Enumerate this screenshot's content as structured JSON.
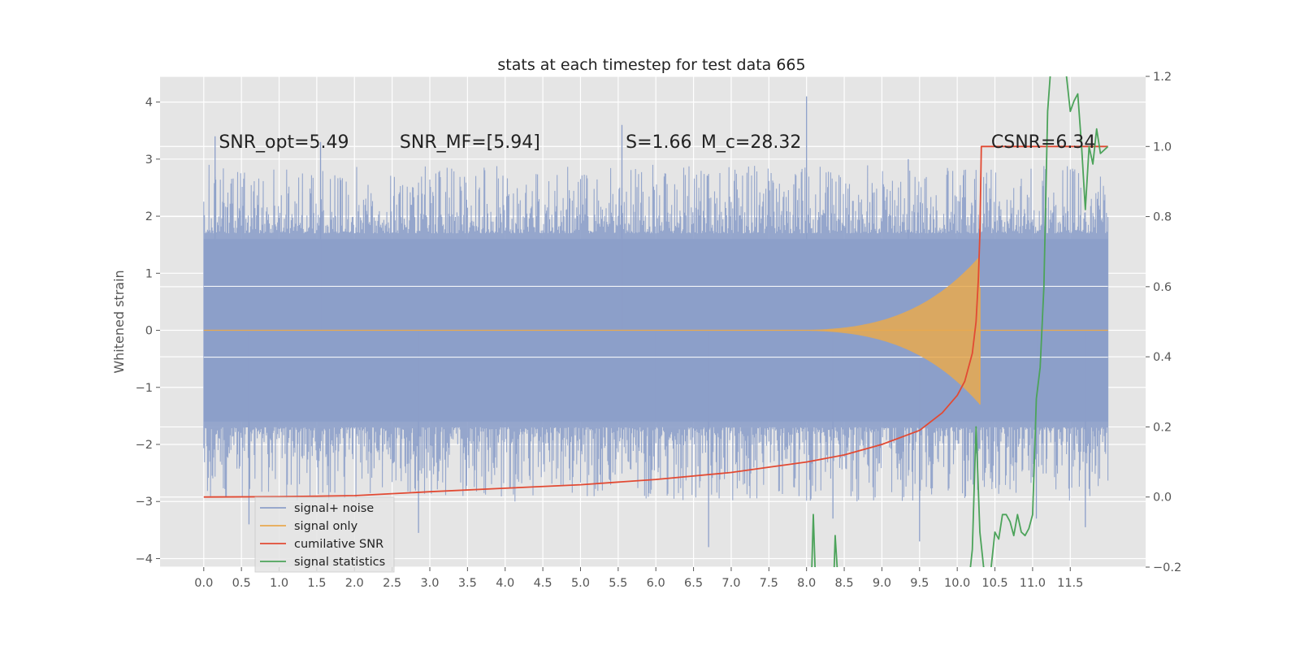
{
  "chart_data": {
    "type": "line",
    "title": "stats at each timestep for test data 665",
    "xlabel": "",
    "ylabel": "Whitened strain",
    "y2label": "",
    "xlim": [
      -0.58,
      12.5
    ],
    "ylim": [
      -4.15,
      4.45
    ],
    "y2lim": [
      -0.2,
      1.2
    ],
    "grid": true,
    "legend_position": "lower-left",
    "x_ticks": [
      "0.0",
      "0.5",
      "1.0",
      "1.5",
      "2.0",
      "2.5",
      "3.0",
      "3.5",
      "4.0",
      "4.5",
      "5.0",
      "5.5",
      "6.0",
      "6.5",
      "7.0",
      "7.5",
      "8.0",
      "8.5",
      "9.0",
      "9.5",
      "10.0",
      "10.5",
      "11.0",
      "11.5"
    ],
    "y_ticks": [
      "4",
      "3",
      "2",
      "1",
      "0",
      "−1",
      "−2",
      "−3",
      "−4"
    ],
    "y2_ticks": [
      "1.2",
      "1.0",
      "0.8",
      "0.6",
      "0.4",
      "0.2",
      "0.0",
      "−0.2"
    ],
    "annotations": [
      {
        "text": "SNR_opt=5.49",
        "x": 0.2,
        "y": 3.3
      },
      {
        "text": "SNR_MF=[5.94]",
        "x": 2.6,
        "y": 3.3
      },
      {
        "text": "S=1.66",
        "x": 5.6,
        "y": 3.3
      },
      {
        "text": "M_c=28.32",
        "x": 6.6,
        "y": 3.3
      },
      {
        "text": "CSNR=6.34",
        "x": 10.45,
        "y": 3.3
      }
    ],
    "series": [
      {
        "name": "signal+ noise",
        "color": "#8c9fc9",
        "axis": "left",
        "description": "whitened strain noise band",
        "x_range": [
          0.0,
          12.0
        ],
        "band_core": [
          -1.6,
          1.6
        ],
        "spikes": [
          [
            0.15,
            3.4
          ],
          [
            0.6,
            -3.4
          ],
          [
            1.55,
            3.3
          ],
          [
            2.85,
            -3.55
          ],
          [
            5.55,
            3.6
          ],
          [
            6.0,
            -1.6
          ],
          [
            6.7,
            -3.8
          ],
          [
            8.0,
            4.1
          ],
          [
            8.35,
            -3.3
          ],
          [
            9.35,
            3.0
          ],
          [
            9.5,
            -3.7
          ],
          [
            11.05,
            -3.3
          ],
          [
            11.7,
            -3.45
          ]
        ]
      },
      {
        "name": "signal only",
        "color": "#e8a94f",
        "axis": "left",
        "chirp_peak_x": 10.3,
        "chirp_peak_amp": 1.3
      },
      {
        "name": "cumilative SNR",
        "color": "#e24a33",
        "axis": "right",
        "x": [
          0.0,
          1.0,
          2.0,
          3.0,
          4.0,
          5.0,
          6.0,
          7.0,
          7.5,
          8.0,
          8.5,
          9.0,
          9.5,
          9.8,
          10.0,
          10.1,
          10.2,
          10.25,
          10.28,
          10.3,
          10.32,
          12.0
        ],
        "y": [
          0.0,
          0.001,
          0.004,
          0.015,
          0.025,
          0.035,
          0.05,
          0.07,
          0.085,
          0.1,
          0.12,
          0.15,
          0.19,
          0.24,
          0.29,
          0.33,
          0.41,
          0.5,
          0.62,
          0.75,
          1.0,
          1.0
        ]
      },
      {
        "name": "signal statistics",
        "color": "#4ca35a",
        "axis": "right",
        "x": [
          8.05,
          8.07,
          8.09,
          8.12,
          8.36,
          8.38,
          8.4,
          8.42,
          10.15,
          10.2,
          10.25,
          10.3,
          10.35,
          10.4,
          10.45,
          10.5,
          10.55,
          10.6,
          10.65,
          10.7,
          10.75,
          10.8,
          10.85,
          10.9,
          10.95,
          11.0,
          11.05,
          11.1,
          11.15,
          11.2,
          11.25,
          11.3,
          11.35,
          11.4,
          11.45,
          11.5,
          11.55,
          11.6,
          11.65,
          11.7,
          11.75,
          11.8,
          11.85,
          11.9,
          11.95,
          12.0
        ],
        "y": [
          -0.25,
          -0.2,
          -0.05,
          -0.25,
          -0.25,
          -0.11,
          -0.18,
          -0.25,
          -0.25,
          -0.15,
          0.2,
          -0.1,
          -0.2,
          -0.25,
          -0.2,
          -0.1,
          -0.12,
          -0.05,
          -0.05,
          -0.07,
          -0.11,
          -0.05,
          -0.1,
          -0.11,
          -0.09,
          -0.05,
          0.28,
          0.37,
          0.6,
          1.1,
          1.25,
          1.25,
          1.35,
          1.25,
          1.2,
          1.1,
          1.13,
          1.15,
          1.0,
          0.82,
          1.0,
          0.95,
          1.05,
          0.98,
          0.99,
          1.0
        ]
      }
    ]
  }
}
